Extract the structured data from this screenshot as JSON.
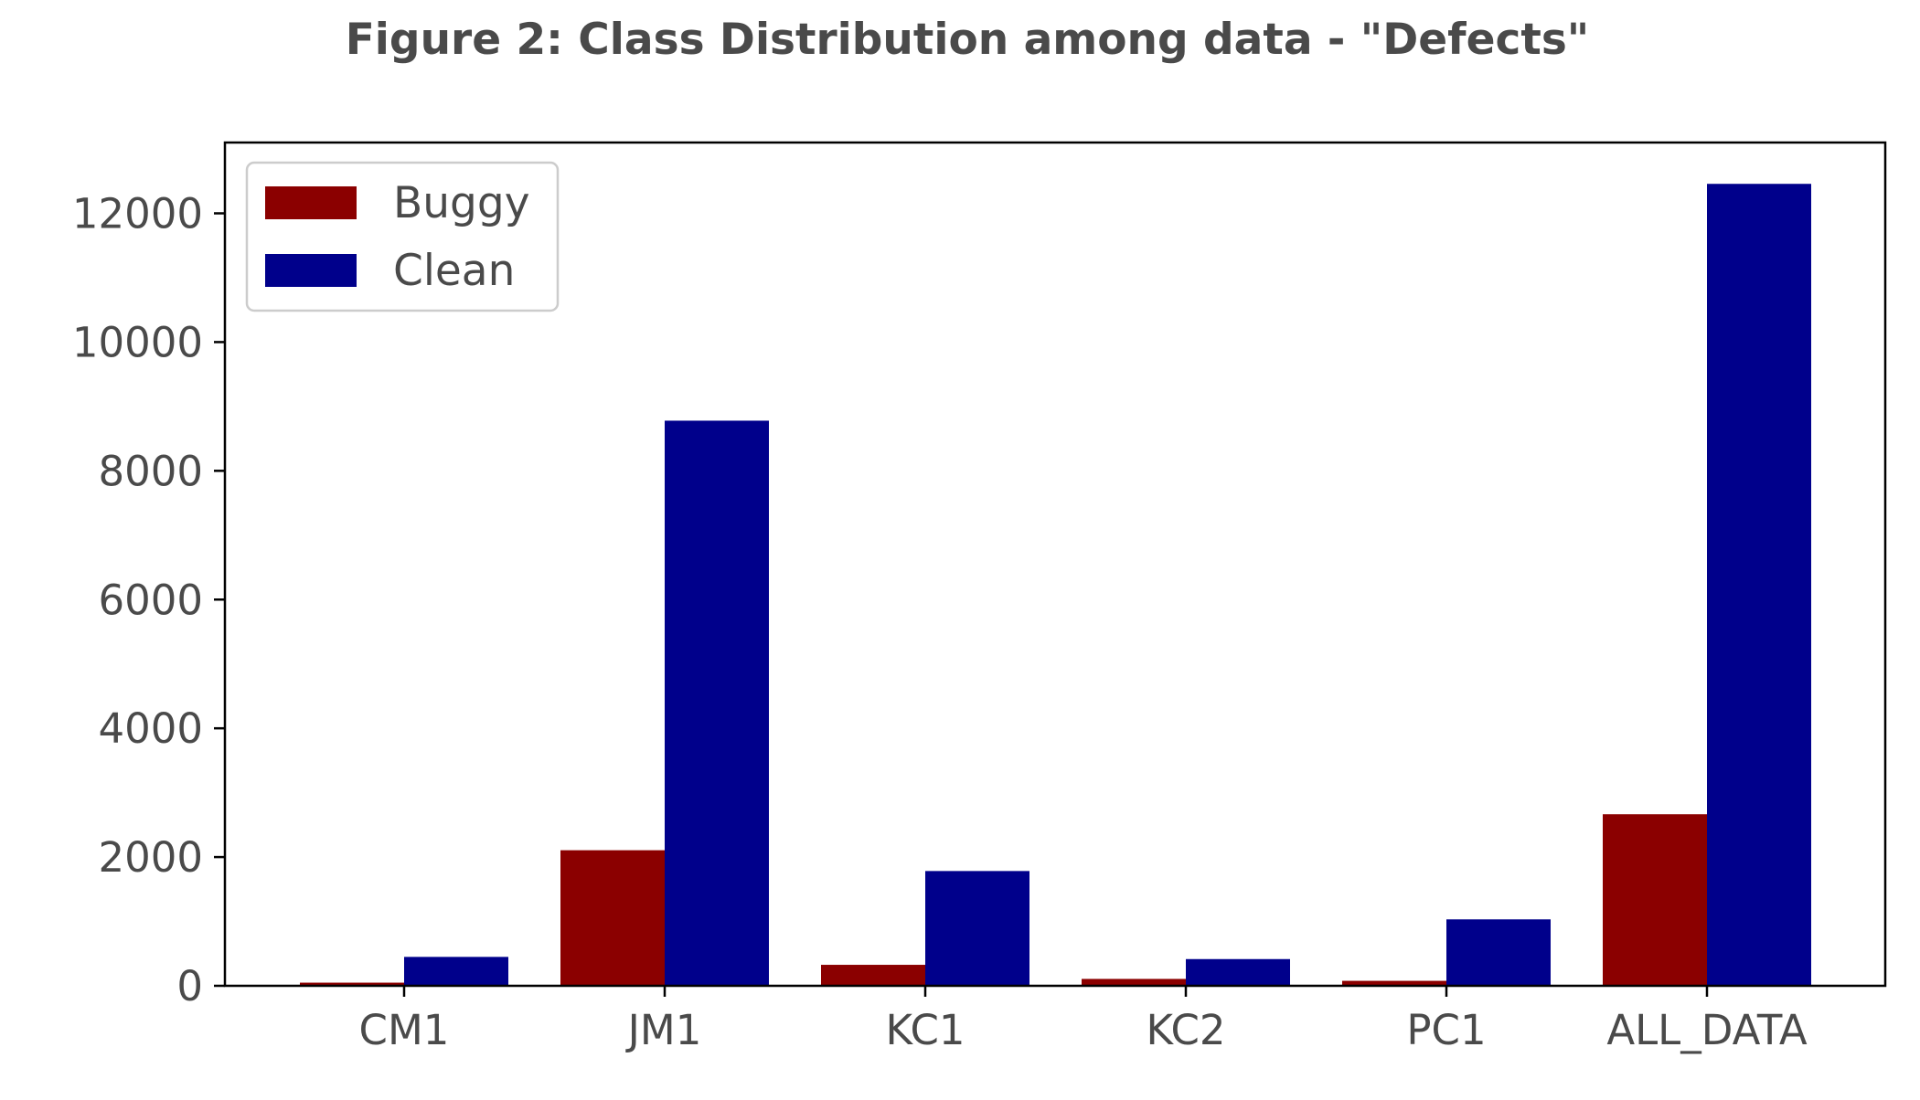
{
  "chart_data": {
    "type": "bar",
    "title": "Figure 2: Class Distribution among data - \"Defects\"",
    "xlabel": "",
    "ylabel": "",
    "categories": [
      "CM1",
      "JM1",
      "KC1",
      "KC2",
      "PC1",
      "ALL_DATA"
    ],
    "series": [
      {
        "name": "Buggy",
        "color": "#8b0000",
        "values": [
          49,
          2106,
          326,
          107,
          77,
          2665
        ]
      },
      {
        "name": "Clean",
        "color": "#00008b",
        "values": [
          449,
          8779,
          1783,
          415,
          1032,
          12458
        ]
      }
    ],
    "ylim": [
      0,
      13100
    ],
    "yticks": [
      0,
      2000,
      4000,
      6000,
      8000,
      10000,
      12000
    ],
    "grid": false,
    "legend_position": "top-left"
  }
}
